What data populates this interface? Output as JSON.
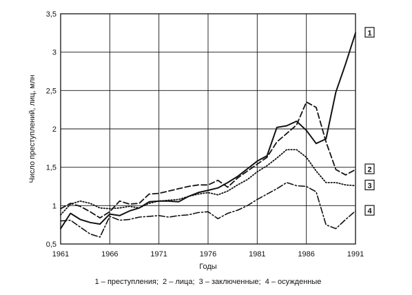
{
  "chart_data": {
    "type": "line",
    "title": "",
    "xlabel": "Годы",
    "ylabel": "Число преступлений, лиц, млн",
    "xlim": [
      1961,
      1991
    ],
    "ylim": [
      0.5,
      3.5
    ],
    "x_ticks": [
      1961,
      1966,
      1971,
      1976,
      1981,
      1986,
      1991
    ],
    "x_tick_labels": [
      "1961",
      "1966",
      "1971",
      "1976",
      "1981",
      "1986",
      "1991"
    ],
    "y_ticks": [
      0.5,
      1,
      1.5,
      2,
      2.5,
      3,
      3.5
    ],
    "y_tick_labels": [
      "0,5",
      "1",
      "1,5",
      "2",
      "2,5",
      "3",
      "3,5"
    ],
    "grid": true,
    "legend_text": "1 – преступления;  2 – лица;  3 – заключенные;  4 – осужденные",
    "series": [
      {
        "tag": "1",
        "style": "solid",
        "x": [
          1961,
          1962,
          1963,
          1964,
          1965,
          1966,
          1967,
          1968,
          1969,
          1970,
          1971,
          1972,
          1973,
          1974,
          1975,
          1976,
          1977,
          1978,
          1979,
          1980,
          1981,
          1982,
          1983,
          1984,
          1985,
          1986,
          1987,
          1988,
          1989,
          1990,
          1991
        ],
        "y": [
          0.7,
          0.9,
          0.82,
          0.78,
          0.76,
          0.89,
          0.87,
          0.93,
          0.97,
          1.05,
          1.06,
          1.06,
          1.05,
          1.12,
          1.17,
          1.2,
          1.23,
          1.3,
          1.38,
          1.48,
          1.58,
          1.65,
          2.02,
          2.04,
          2.1,
          1.98,
          1.81,
          1.87,
          2.48,
          2.85,
          3.25
        ]
      },
      {
        "tag": "2",
        "style": "dashed",
        "x": [
          1961,
          1962,
          1963,
          1964,
          1965,
          1966,
          1967,
          1968,
          1969,
          1970,
          1971,
          1972,
          1973,
          1974,
          1975,
          1976,
          1977,
          1978,
          1979,
          1980,
          1981,
          1982,
          1983,
          1984,
          1985,
          1986,
          1987,
          1988,
          1989,
          1990,
          1991
        ],
        "y": [
          0.96,
          1.03,
          0.99,
          0.92,
          0.84,
          0.92,
          1.06,
          1.02,
          1.03,
          1.15,
          1.16,
          1.19,
          1.22,
          1.25,
          1.27,
          1.27,
          1.33,
          1.24,
          1.36,
          1.45,
          1.54,
          1.63,
          1.83,
          1.94,
          2.05,
          2.35,
          2.28,
          1.83,
          1.47,
          1.4,
          1.47
        ]
      },
      {
        "tag": "3",
        "style": "dotted",
        "x": [
          1961,
          1962,
          1963,
          1964,
          1965,
          1966,
          1967,
          1968,
          1969,
          1970,
          1971,
          1972,
          1973,
          1974,
          1975,
          1976,
          1977,
          1978,
          1979,
          1980,
          1981,
          1982,
          1983,
          1984,
          1985,
          1986,
          1987,
          1988,
          1989,
          1990,
          1991
        ],
        "y": [
          0.88,
          1.02,
          1.06,
          1.03,
          0.97,
          0.96,
          0.97,
          0.99,
          0.97,
          1.03,
          1.06,
          1.07,
          1.08,
          1.12,
          1.15,
          1.17,
          1.14,
          1.19,
          1.27,
          1.34,
          1.44,
          1.52,
          1.62,
          1.73,
          1.73,
          1.63,
          1.45,
          1.3,
          1.3,
          1.27,
          1.26
        ]
      },
      {
        "tag": "4",
        "style": "dashdot",
        "x": [
          1961,
          1962,
          1963,
          1964,
          1965,
          1966,
          1967,
          1968,
          1969,
          1970,
          1971,
          1972,
          1973,
          1974,
          1975,
          1976,
          1977,
          1978,
          1979,
          1980,
          1981,
          1982,
          1983,
          1984,
          1985,
          1986,
          1987,
          1988,
          1989,
          1990,
          1991
        ],
        "y": [
          0.8,
          0.81,
          0.72,
          0.63,
          0.59,
          0.86,
          0.81,
          0.82,
          0.85,
          0.86,
          0.87,
          0.85,
          0.87,
          0.88,
          0.91,
          0.92,
          0.83,
          0.9,
          0.94,
          1.0,
          1.08,
          1.15,
          1.22,
          1.3,
          1.26,
          1.25,
          1.18,
          0.75,
          0.7,
          0.82,
          0.93
        ]
      }
    ]
  },
  "colors": {
    "line": "#111111",
    "grid": "#111111",
    "background": "#ffffff"
  }
}
